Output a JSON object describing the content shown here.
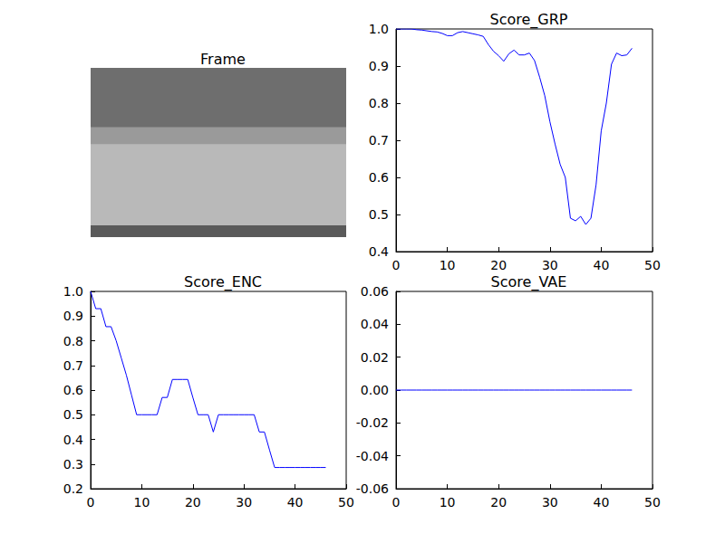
{
  "chart_data": [
    {
      "type": "image",
      "title": "Frame"
    },
    {
      "type": "line",
      "title": "Score_GRP",
      "color": "#0000ff",
      "x": [
        0,
        1,
        2,
        3,
        4,
        5,
        6,
        7,
        8,
        9,
        10,
        11,
        12,
        13,
        14,
        15,
        16,
        17,
        18,
        19,
        20,
        21,
        22,
        23,
        24,
        25,
        26,
        27,
        28,
        29,
        30,
        31,
        32,
        33,
        34,
        35,
        36,
        37,
        38,
        39,
        40,
        41,
        42,
        43,
        44,
        45,
        46
      ],
      "values": [
        1.0,
        1.0,
        1.0,
        1.0,
        0.998,
        0.997,
        0.995,
        0.993,
        0.992,
        0.988,
        0.982,
        0.982,
        0.99,
        0.993,
        0.99,
        0.987,
        0.984,
        0.98,
        0.958,
        0.94,
        0.928,
        0.913,
        0.933,
        0.943,
        0.93,
        0.93,
        0.935,
        0.915,
        0.87,
        0.82,
        0.75,
        0.69,
        0.635,
        0.6,
        0.49,
        0.483,
        0.495,
        0.473,
        0.49,
        0.58,
        0.725,
        0.8,
        0.905,
        0.935,
        0.928,
        0.93,
        0.948
      ],
      "xlim": [
        0,
        50
      ],
      "xticks": [
        0,
        10,
        20,
        30,
        40,
        50
      ],
      "ylim": [
        0.4,
        1.0
      ],
      "yticks": [
        0.4,
        0.5,
        0.6,
        0.7,
        0.8,
        0.9,
        {
          "value": 1.0,
          "label": "1.0"
        }
      ],
      "grid": false
    },
    {
      "type": "line",
      "title": "Score_ENC",
      "color": "#0000ff",
      "x": [
        0,
        1,
        2,
        3,
        4,
        5,
        6,
        7,
        8,
        9,
        10,
        11,
        12,
        13,
        14,
        15,
        16,
        17,
        18,
        19,
        20,
        21,
        22,
        23,
        24,
        25,
        26,
        27,
        28,
        29,
        30,
        31,
        32,
        33,
        34,
        35,
        36,
        37,
        38,
        39,
        40,
        41,
        42,
        43,
        44,
        45,
        46
      ],
      "values": [
        1.0,
        0.93,
        0.93,
        0.857,
        0.857,
        0.8,
        0.73,
        0.66,
        0.58,
        0.5,
        0.5,
        0.5,
        0.5,
        0.5,
        0.57,
        0.57,
        0.643,
        0.643,
        0.643,
        0.643,
        0.57,
        0.5,
        0.5,
        0.5,
        0.43,
        0.5,
        0.5,
        0.5,
        0.5,
        0.5,
        0.5,
        0.5,
        0.5,
        0.43,
        0.43,
        0.357,
        0.286,
        0.286,
        0.286,
        0.286,
        0.286,
        0.286,
        0.286,
        0.286,
        0.286,
        0.286,
        0.286
      ],
      "xlim": [
        0,
        50
      ],
      "xticks": [
        0,
        10,
        20,
        30,
        40,
        50
      ],
      "ylim": [
        0.2,
        1.0
      ],
      "yticks": [
        0.2,
        0.3,
        0.4,
        0.5,
        0.6,
        0.7,
        0.8,
        0.9,
        {
          "value": 1.0,
          "label": "1.0"
        }
      ],
      "grid": false
    },
    {
      "type": "line",
      "title": "Score_VAE",
      "color": "#0000ff",
      "x": [
        0,
        1,
        2,
        3,
        4,
        5,
        6,
        7,
        8,
        9,
        10,
        11,
        12,
        13,
        14,
        15,
        16,
        17,
        18,
        19,
        20,
        21,
        22,
        23,
        24,
        25,
        26,
        27,
        28,
        29,
        30,
        31,
        32,
        33,
        34,
        35,
        36,
        37,
        38,
        39,
        40,
        41,
        42,
        43,
        44,
        45,
        46
      ],
      "values": [
        0,
        0,
        0,
        0,
        0,
        0,
        0,
        0,
        0,
        0,
        0,
        0,
        0,
        0,
        0,
        0,
        0,
        0,
        0,
        0,
        0,
        0,
        0,
        0,
        0,
        0,
        0,
        0,
        0,
        0,
        0,
        0,
        0,
        0,
        0,
        0,
        0,
        0,
        0,
        0,
        0,
        0,
        0,
        0,
        0,
        0,
        0
      ],
      "xlim": [
        0,
        50
      ],
      "xticks": [
        0,
        10,
        20,
        30,
        40,
        50
      ],
      "ylim": [
        -0.06,
        0.06
      ],
      "yticks": [
        -0.06,
        -0.04,
        -0.02,
        {
          "value": 0,
          "label": "0.00"
        },
        0.02,
        0.04,
        0.06
      ],
      "grid": false
    }
  ]
}
